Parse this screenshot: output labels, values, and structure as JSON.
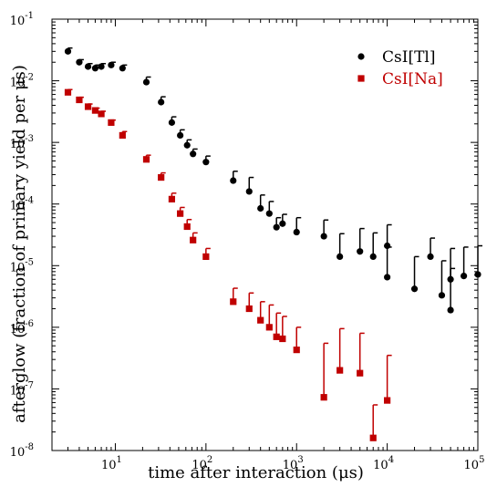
{
  "chart_data": {
    "type": "scatter",
    "xlabel": "time after interaction (μs)",
    "ylabel": "afterglow (fraction of primary yield per μs)",
    "x_scale": "log",
    "y_scale": "log",
    "xlim": [
      2,
      100000
    ],
    "ylim": [
      1e-08,
      0.1
    ],
    "x_ticks": [
      {
        "value": 10,
        "base": "10",
        "exp": "1"
      },
      {
        "value": 100,
        "base": "10",
        "exp": "2"
      },
      {
        "value": 1000,
        "base": "10",
        "exp": "3"
      },
      {
        "value": 10000,
        "base": "10",
        "exp": "4"
      },
      {
        "value": 100000,
        "base": "10",
        "exp": "5"
      }
    ],
    "y_ticks": [
      {
        "value": 1e-08,
        "base": "10",
        "exp": "-8"
      },
      {
        "value": 1e-07,
        "base": "10",
        "exp": "-7"
      },
      {
        "value": 1e-06,
        "base": "10",
        "exp": "-6"
      },
      {
        "value": 1e-05,
        "base": "10",
        "exp": "-5"
      },
      {
        "value": 0.0001,
        "base": "10",
        "exp": "-4"
      },
      {
        "value": 0.001,
        "base": "10",
        "exp": "-3"
      },
      {
        "value": 0.01,
        "base": "10",
        "exp": "-2"
      },
      {
        "value": 0.1,
        "base": "10",
        "exp": "-1"
      }
    ],
    "legend_position": "top-right",
    "grid": false,
    "series": [
      {
        "name": "CsI[Tl]",
        "color": "#000000",
        "marker": "circle",
        "points": [
          {
            "x": 3,
            "y": 0.03
          },
          {
            "x": 4,
            "y": 0.02
          },
          {
            "x": 5,
            "y": 0.017
          },
          {
            "x": 6,
            "y": 0.016
          },
          {
            "x": 7,
            "y": 0.017
          },
          {
            "x": 9,
            "y": 0.018
          },
          {
            "x": 12,
            "y": 0.016
          },
          {
            "x": 22,
            "y": 0.0095
          },
          {
            "x": 32,
            "y": 0.0045
          },
          {
            "x": 42,
            "y": 0.0021
          },
          {
            "x": 52,
            "y": 0.0013
          },
          {
            "x": 62,
            "y": 0.0009
          },
          {
            "x": 72,
            "y": 0.00065
          },
          {
            "x": 100,
            "y": 0.00048
          },
          {
            "x": 200,
            "y": 0.00024
          },
          {
            "x": 300,
            "y": 0.00016
          },
          {
            "x": 400,
            "y": 8.5e-05
          },
          {
            "x": 500,
            "y": 7e-05
          },
          {
            "x": 600,
            "y": 4.2e-05
          },
          {
            "x": 700,
            "y": 4.8e-05
          },
          {
            "x": 1000,
            "y": 3.5e-05
          },
          {
            "x": 2000,
            "y": 3e-05
          },
          {
            "x": 3000,
            "y": 1.4e-05
          },
          {
            "x": 5000,
            "y": 1.7e-05
          },
          {
            "x": 7000,
            "y": 1.4e-05
          },
          {
            "x": 10000,
            "y": 2.1e-05
          },
          {
            "x": 10000,
            "y": 6.5e-06
          },
          {
            "x": 20000,
            "y": 4.2e-06
          },
          {
            "x": 30000,
            "y": 1.4e-05
          },
          {
            "x": 40000,
            "y": 3.3e-06
          },
          {
            "x": 50000,
            "y": 1.9e-06
          },
          {
            "x": 50000,
            "y": 6e-06
          },
          {
            "x": 70000,
            "y": 6.8e-06
          },
          {
            "x": 100000,
            "y": 7.2e-06
          }
        ],
        "err_up": [
          0.034,
          0.022,
          0.019,
          0.018,
          0.019,
          0.02,
          0.018,
          0.0115,
          0.0055,
          0.0026,
          0.0016,
          0.0011,
          0.00078,
          0.0006,
          0.00034,
          0.00027,
          0.00014,
          0.00011,
          6e-05,
          6.8e-05,
          6e-05,
          5.5e-05,
          3.3e-05,
          4e-05,
          3.4e-05,
          4.6e-05,
          2e-05,
          1.4e-05,
          2.8e-05,
          1.2e-05,
          9e-06,
          1.9e-05,
          2e-05,
          2.1e-05
        ]
      },
      {
        "name": "CsI[Na]",
        "color": "#c00000",
        "marker": "square",
        "points": [
          {
            "x": 3,
            "y": 0.0065
          },
          {
            "x": 4,
            "y": 0.0049
          },
          {
            "x": 5,
            "y": 0.0038
          },
          {
            "x": 6,
            "y": 0.0033
          },
          {
            "x": 7,
            "y": 0.0029
          },
          {
            "x": 9,
            "y": 0.0021
          },
          {
            "x": 12,
            "y": 0.0013
          },
          {
            "x": 22,
            "y": 0.00053
          },
          {
            "x": 32,
            "y": 0.00027
          },
          {
            "x": 42,
            "y": 0.00012
          },
          {
            "x": 52,
            "y": 7e-05
          },
          {
            "x": 62,
            "y": 4.3e-05
          },
          {
            "x": 72,
            "y": 2.6e-05
          },
          {
            "x": 100,
            "y": 1.4e-05
          },
          {
            "x": 200,
            "y": 2.6e-06
          },
          {
            "x": 300,
            "y": 2e-06
          },
          {
            "x": 400,
            "y": 1.3e-06
          },
          {
            "x": 500,
            "y": 1e-06
          },
          {
            "x": 600,
            "y": 7e-07
          },
          {
            "x": 700,
            "y": 6.5e-07
          },
          {
            "x": 1000,
            "y": 4.3e-07
          },
          {
            "x": 2000,
            "y": 7.3e-08
          },
          {
            "x": 3000,
            "y": 2e-07
          },
          {
            "x": 5000,
            "y": 1.8e-07
          },
          {
            "x": 7000,
            "y": 1.6e-08
          },
          {
            "x": 10000,
            "y": 6.5e-08
          }
        ],
        "err_up": [
          0.0072,
          0.0054,
          0.0042,
          0.0036,
          0.0032,
          0.0023,
          0.0015,
          0.00062,
          0.00032,
          0.00015,
          8.8e-05,
          5.6e-05,
          3.4e-05,
          1.9e-05,
          4.3e-06,
          3.6e-06,
          2.6e-06,
          2.3e-06,
          1.7e-06,
          1.5e-06,
          1e-06,
          5.5e-07,
          9.5e-07,
          8e-07,
          5.5e-08,
          3.5e-07
        ]
      }
    ]
  }
}
